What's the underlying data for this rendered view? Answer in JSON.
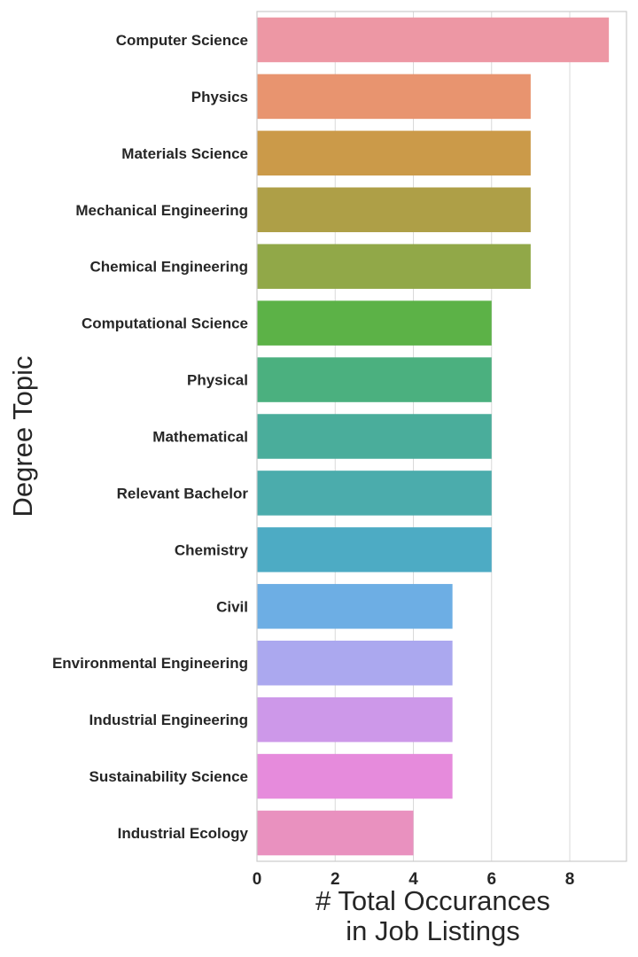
{
  "chart_data": {
    "type": "bar",
    "orientation": "horizontal",
    "categories": [
      "Computer Science",
      "Physics",
      "Materials Science",
      "Mechanical Engineering",
      "Chemical Engineering",
      "Computational Science",
      "Physical",
      "Mathematical",
      "Relevant Bachelor",
      "Chemistry",
      "Civil",
      "Environmental Engineering",
      "Industrial Engineering",
      "Sustainability Science",
      "Industrial Ecology"
    ],
    "values": [
      9,
      7,
      7,
      7,
      7,
      6,
      6,
      6,
      6,
      6,
      5,
      5,
      5,
      5,
      4
    ],
    "colors": [
      "#ed97a4",
      "#e8946f",
      "#cb9a49",
      "#ae9f47",
      "#91a848",
      "#5cb247",
      "#4bb07f",
      "#4aad9b",
      "#4bacac",
      "#4dabc4",
      "#6daee4",
      "#aba8ef",
      "#cd98e9",
      "#e68bdc",
      "#e991bf"
    ],
    "xlim": [
      0,
      9.45
    ],
    "xticks": [
      0,
      2,
      4,
      6,
      8
    ],
    "xlabel_lines": [
      "# Total Occurances",
      "in Job Listings"
    ],
    "ylabel": "Degree Topic",
    "grid": "vertical"
  }
}
